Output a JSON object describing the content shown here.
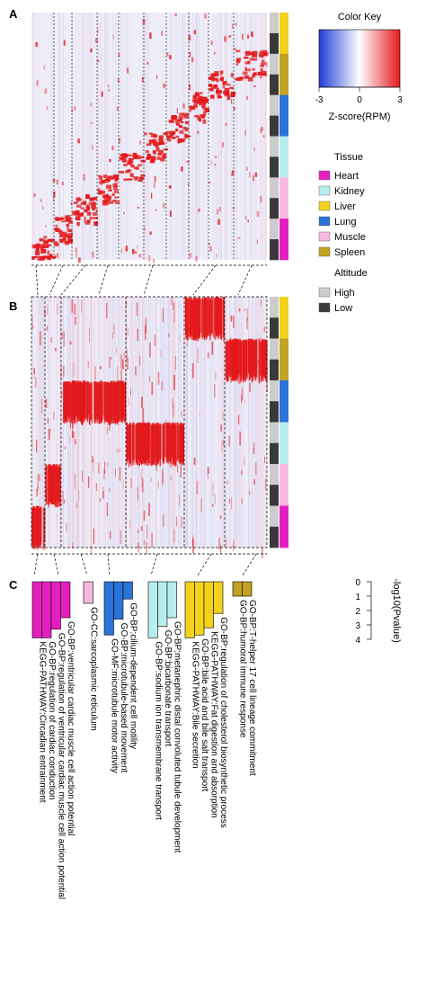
{
  "panels": {
    "a": "A",
    "b": "B",
    "c": "C"
  },
  "colors": {
    "high": "#e31a1c",
    "low": "#e8e8f8",
    "neg": "#1f3fd6",
    "altitude_high": "#cccccc",
    "altitude_low": "#3a3a3a"
  },
  "color_key": {
    "title": "Color Key",
    "ticks": [
      "-3",
      "0",
      "3"
    ],
    "axis_label": "Z-score(RPM)"
  },
  "tissue_legend": {
    "title": "Tissue",
    "items": [
      {
        "label": "Heart",
        "color": "#e51fbf"
      },
      {
        "label": "Kidney",
        "color": "#b6eeee"
      },
      {
        "label": "Liver",
        "color": "#f2d21c"
      },
      {
        "label": "Lung",
        "color": "#2a73d9"
      },
      {
        "label": "Muscle",
        "color": "#f7b9e0"
      },
      {
        "label": "Spleen",
        "color": "#c2a223"
      }
    ]
  },
  "altitude_legend": {
    "title": "Altitude",
    "items": [
      {
        "label": "High",
        "color": "#cccccc"
      },
      {
        "label": "Low",
        "color": "#3a3a3a"
      }
    ]
  },
  "sample_rows": [
    "Liver",
    "Liver",
    "Spleen",
    "Spleen",
    "Lung",
    "Lung",
    "Kidney",
    "Kidney",
    "Muscle",
    "Muscle",
    "Heart",
    "Heart"
  ],
  "sample_altitude": [
    "High",
    "Low",
    "High",
    "Low",
    "High",
    "Low",
    "High",
    "Low",
    "High",
    "Low",
    "High",
    "Low"
  ],
  "chart_data": {
    "type": "bar",
    "axis_label": "-log10(Pvalue)",
    "ticks": [
      "0",
      "1",
      "2",
      "3",
      "4"
    ],
    "ylim": [
      0,
      4
    ],
    "groups": [
      {
        "tissue": "Heart",
        "color": "#e51fbf",
        "terms": [
          {
            "label": "KEGG-PATHWAY:Circadian entrainment",
            "value": 3.9
          },
          {
            "label": "GO-BP:regulation of cardiac conduction",
            "value": 3.9
          },
          {
            "label": "GO-BP:regulation of ventricular cardiac muscle cell action potential",
            "value": 3.3
          },
          {
            "label": "GO-BP:ventricular cardiac muscle cell action potential",
            "value": 2.5
          }
        ]
      },
      {
        "tissue": "Muscle",
        "color": "#f7b9e0",
        "terms": [
          {
            "label": "GO-CC:sarcoplasmic reticulum",
            "value": 1.5
          }
        ]
      },
      {
        "tissue": "Lung",
        "color": "#2a73d9",
        "terms": [
          {
            "label": "GO-MF:microtubule motor activity",
            "value": 3.7
          },
          {
            "label": "GO-BP:microtubule-based movement",
            "value": 2.6
          },
          {
            "label": "GO-BP:cilium-dependent cell motility",
            "value": 1.2
          }
        ]
      },
      {
        "tissue": "Kidney",
        "color": "#b6eeee",
        "terms": [
          {
            "label": "GO-BP:sodium ion transmembrane transport",
            "value": 3.9
          },
          {
            "label": "GO-BP:bicarbonate transport",
            "value": 3.1
          },
          {
            "label": "GO-BP:metanephric distal convoluted tubule development",
            "value": 2.5
          }
        ]
      },
      {
        "tissue": "Liver",
        "color": "#f2d21c",
        "terms": [
          {
            "label": "KEGG-PATHWAY:Bile secretion",
            "value": 3.9
          },
          {
            "label": "GO-BP:bile acid and bile salt transport",
            "value": 3.7
          },
          {
            "label": "KEGG-PATHWAY:Fat digestion and absorption",
            "value": 3.2
          },
          {
            "label": "GO-BP:regulation of cholesterol biosynthetic process",
            "value": 2.2
          }
        ]
      },
      {
        "tissue": "Spleen",
        "color": "#c2a223",
        "terms": [
          {
            "label": "GO-BP:humoral immune response",
            "value": 1.0
          },
          {
            "label": "GO-BP:T-helper 17 cell lineage commitment",
            "value": 1.0
          }
        ]
      }
    ]
  }
}
